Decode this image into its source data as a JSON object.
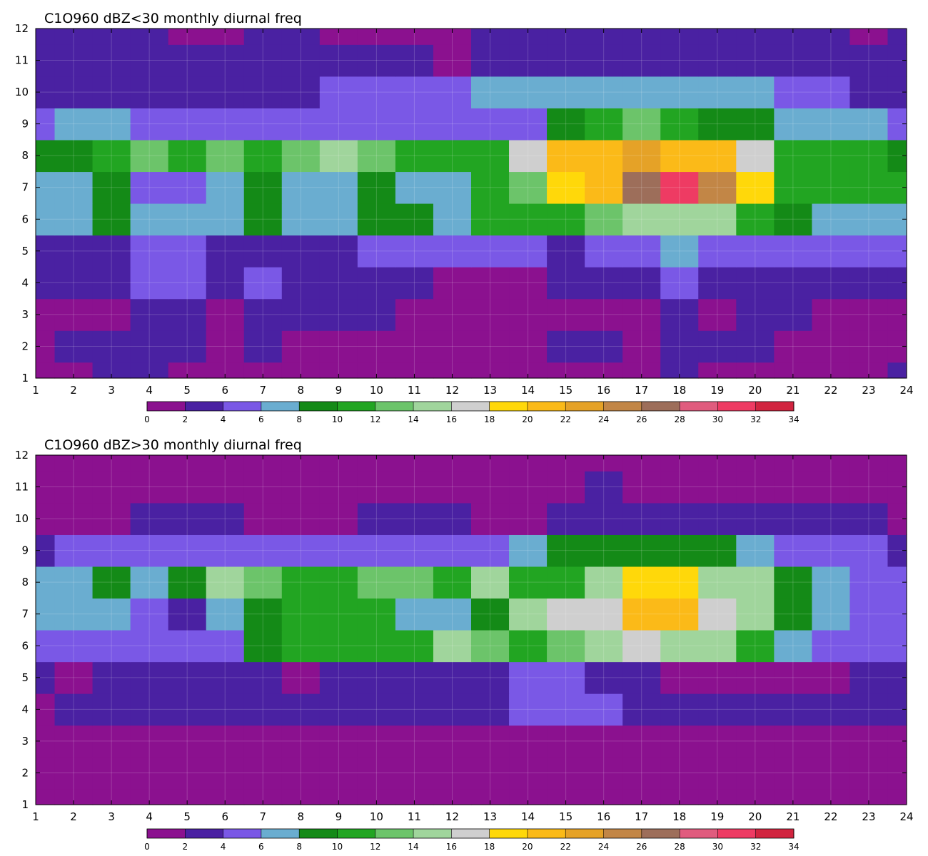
{
  "chart_data": [
    {
      "type": "heatmap",
      "title": "C1O960 dBZ<30 monthly diurnal freq",
      "x_ticks": [
        1,
        2,
        3,
        4,
        5,
        6,
        7,
        8,
        9,
        10,
        11,
        12,
        13,
        14,
        15,
        16,
        17,
        18,
        19,
        20,
        21,
        22,
        23,
        24
      ],
      "y_ticks": [
        1,
        2,
        3,
        4,
        5,
        6,
        7,
        8,
        9,
        10,
        11,
        12
      ],
      "xlim": [
        1,
        24
      ],
      "ylim": [
        1,
        12
      ],
      "contour_levels": [
        0,
        2,
        4,
        6,
        8,
        10,
        12,
        14,
        16,
        18,
        20,
        22,
        24,
        26,
        28,
        30,
        32,
        34
      ],
      "colorbar_ticks": [
        "0",
        "2",
        "4",
        "6",
        "8",
        "10",
        "12",
        "14",
        "16",
        "18",
        "20",
        "22",
        "24",
        "26",
        "28",
        "30",
        "32",
        "34"
      ],
      "colors": [
        "#8b118f",
        "#4a21a2",
        "#7a58e6",
        "#6aadd0",
        "#148a17",
        "#22a522",
        "#6cc46a",
        "#a0d59c",
        "#cfcfcf",
        "#ffd80a",
        "#fbba18",
        "#e5a227",
        "#c28646",
        "#9d6e5a",
        "#e05c7e",
        "#ee3b63",
        "#d1243f"
      ],
      "z_estimate_by_month": [
        {
          "y": 1,
          "values": [
            1,
            1,
            2,
            2,
            1,
            1,
            1,
            1,
            1,
            1,
            1,
            1,
            1,
            1,
            1,
            1,
            1,
            2,
            1,
            1,
            1,
            1,
            1,
            2
          ]
        },
        {
          "y": 2,
          "values": [
            1,
            2,
            2,
            2,
            2,
            1,
            2,
            1,
            1,
            1,
            1,
            1,
            1,
            1,
            2,
            2,
            1,
            2,
            2,
            2,
            1,
            1,
            1,
            1
          ]
        },
        {
          "y": 3,
          "values": [
            1,
            1,
            1,
            2,
            2,
            1,
            2,
            2,
            2,
            2,
            1,
            1,
            1,
            1,
            1,
            1,
            1,
            3,
            1,
            2,
            2,
            1,
            1,
            1
          ]
        },
        {
          "y": 4,
          "values": [
            2,
            3,
            3,
            5,
            5,
            3,
            5,
            3,
            3,
            3,
            3,
            1,
            1,
            1,
            3,
            3,
            3,
            4,
            3,
            3,
            3,
            3,
            3,
            3
          ]
        },
        {
          "y": 5,
          "values": [
            3,
            3,
            3,
            5,
            5,
            3,
            3,
            3,
            3,
            5,
            5,
            5,
            5,
            5,
            3,
            5,
            5,
            6,
            5,
            5,
            5,
            5,
            5,
            5
          ]
        },
        {
          "y": 6,
          "values": [
            6,
            7,
            9,
            7,
            7,
            7,
            9,
            7,
            7,
            9,
            9,
            7,
            11,
            11,
            11,
            13,
            15,
            15,
            15,
            11,
            9,
            7,
            7,
            7
          ]
        },
        {
          "y": 7,
          "values": [
            7,
            7,
            9,
            5,
            5,
            7,
            9,
            7,
            7,
            9,
            7,
            7,
            11,
            13,
            19,
            21,
            27,
            31,
            25,
            19,
            11,
            11,
            11,
            11
          ]
        },
        {
          "y": 8,
          "values": [
            9,
            9,
            11,
            13,
            11,
            13,
            11,
            13,
            15,
            13,
            11,
            11,
            11,
            17,
            21,
            21,
            23,
            21,
            21,
            17,
            11,
            11,
            11,
            9
          ]
        },
        {
          "y": 9,
          "values": [
            5,
            7,
            7,
            5,
            5,
            5,
            5,
            5,
            5,
            5,
            5,
            5,
            5,
            5,
            9,
            11,
            13,
            11,
            9,
            9,
            7,
            7,
            7,
            5
          ]
        },
        {
          "y": 10,
          "values": [
            3,
            3,
            3,
            3,
            3,
            3,
            3,
            3,
            5,
            5,
            5,
            5,
            7,
            7,
            7,
            7,
            7,
            7,
            7,
            7,
            5,
            5,
            3,
            3
          ]
        },
        {
          "y": 11,
          "values": [
            3,
            3,
            3,
            3,
            3,
            3,
            3,
            3,
            3,
            3,
            3,
            1,
            3,
            3,
            3,
            3,
            3,
            3,
            3,
            3,
            3,
            3,
            3,
            3
          ]
        },
        {
          "y": 12,
          "values": [
            3,
            3,
            3,
            3,
            1,
            1,
            3,
            3,
            1,
            1,
            1,
            1,
            3,
            3,
            3,
            3,
            3,
            3,
            3,
            3,
            3,
            3,
            1,
            3
          ]
        }
      ]
    },
    {
      "type": "heatmap",
      "title": "C1O960 dBZ>30 monthly diurnal freq",
      "x_ticks": [
        1,
        2,
        3,
        4,
        5,
        6,
        7,
        8,
        9,
        10,
        11,
        12,
        13,
        14,
        15,
        16,
        17,
        18,
        19,
        20,
        21,
        22,
        23,
        24
      ],
      "y_ticks": [
        1,
        2,
        3,
        4,
        5,
        6,
        7,
        8,
        9,
        10,
        11,
        12
      ],
      "xlim": [
        1,
        24
      ],
      "ylim": [
        1,
        12
      ],
      "contour_levels": [
        0,
        2,
        4,
        6,
        8,
        10,
        12,
        14,
        16,
        18,
        20,
        22,
        24,
        26,
        28,
        30,
        32,
        34
      ],
      "colorbar_ticks": [
        "0",
        "2",
        "4",
        "6",
        "8",
        "10",
        "12",
        "14",
        "16",
        "18",
        "20",
        "22",
        "24",
        "26",
        "28",
        "30",
        "32",
        "34"
      ],
      "colors": [
        "#8b118f",
        "#4a21a2",
        "#7a58e6",
        "#6aadd0",
        "#148a17",
        "#22a522",
        "#6cc46a",
        "#a0d59c",
        "#cfcfcf",
        "#ffd80a",
        "#fbba18",
        "#e5a227",
        "#c28646",
        "#9d6e5a",
        "#e05c7e",
        "#ee3b63",
        "#d1243f"
      ],
      "z_estimate_by_month": [
        {
          "y": 1,
          "values": [
            1,
            1,
            1,
            1,
            1,
            1,
            1,
            1,
            1,
            1,
            1,
            1,
            1,
            1,
            1,
            1,
            1,
            1,
            1,
            1,
            1,
            1,
            1,
            1
          ]
        },
        {
          "y": 2,
          "values": [
            1,
            1,
            1,
            1,
            1,
            1,
            1,
            1,
            1,
            1,
            1,
            1,
            1,
            1,
            1,
            1,
            1,
            1,
            1,
            1,
            1,
            1,
            1,
            1
          ]
        },
        {
          "y": 3,
          "values": [
            1,
            1,
            1,
            1,
            1,
            1,
            1,
            1,
            1,
            1,
            1,
            1,
            1,
            1,
            1,
            1,
            1,
            1,
            1,
            1,
            1,
            1,
            1,
            1
          ]
        },
        {
          "y": 4,
          "values": [
            1,
            3,
            3,
            3,
            3,
            3,
            3,
            3,
            3,
            3,
            3,
            3,
            3,
            5,
            5,
            5,
            3,
            3,
            3,
            3,
            3,
            3,
            3,
            3
          ]
        },
        {
          "y": 5,
          "values": [
            2,
            1,
            3,
            3,
            3,
            3,
            3,
            1,
            3,
            3,
            3,
            3,
            3,
            5,
            5,
            3,
            3,
            1,
            1,
            1,
            1,
            1,
            3,
            3
          ]
        },
        {
          "y": 6,
          "values": [
            5,
            5,
            5,
            5,
            5,
            5,
            9,
            11,
            11,
            11,
            11,
            15,
            13,
            11,
            13,
            15,
            17,
            15,
            15,
            11,
            7,
            5,
            5,
            5
          ]
        },
        {
          "y": 7,
          "values": [
            7,
            7,
            7,
            5,
            3,
            7,
            9,
            11,
            11,
            11,
            7,
            7,
            9,
            15,
            17,
            17,
            21,
            21,
            17,
            15,
            9,
            7,
            5,
            5
          ]
        },
        {
          "y": 8,
          "values": [
            7,
            7,
            9,
            7,
            9,
            15,
            13,
            11,
            11,
            13,
            13,
            11,
            15,
            11,
            11,
            15,
            19,
            19,
            15,
            15,
            9,
            7,
            5,
            5
          ]
        },
        {
          "y": 9,
          "values": [
            3,
            5,
            5,
            5,
            5,
            5,
            5,
            5,
            5,
            5,
            5,
            5,
            5,
            7,
            9,
            9,
            9,
            9,
            9,
            7,
            5,
            5,
            5,
            3
          ]
        },
        {
          "y": 10,
          "values": [
            1,
            1,
            1,
            3,
            3,
            3,
            1,
            1,
            1,
            3,
            3,
            3,
            1,
            1,
            3,
            3,
            3,
            3,
            3,
            3,
            3,
            3,
            3,
            1
          ]
        },
        {
          "y": 11,
          "values": [
            1,
            1,
            1,
            1,
            1,
            1,
            1,
            1,
            1,
            1,
            1,
            1,
            1,
            1,
            1,
            3,
            1,
            1,
            1,
            1,
            1,
            1,
            1,
            1
          ]
        },
        {
          "y": 12,
          "values": [
            1,
            1,
            1,
            1,
            1,
            1,
            1,
            1,
            1,
            1,
            1,
            1,
            1,
            1,
            1,
            1,
            1,
            1,
            1,
            1,
            1,
            1,
            1,
            1
          ]
        }
      ]
    }
  ]
}
